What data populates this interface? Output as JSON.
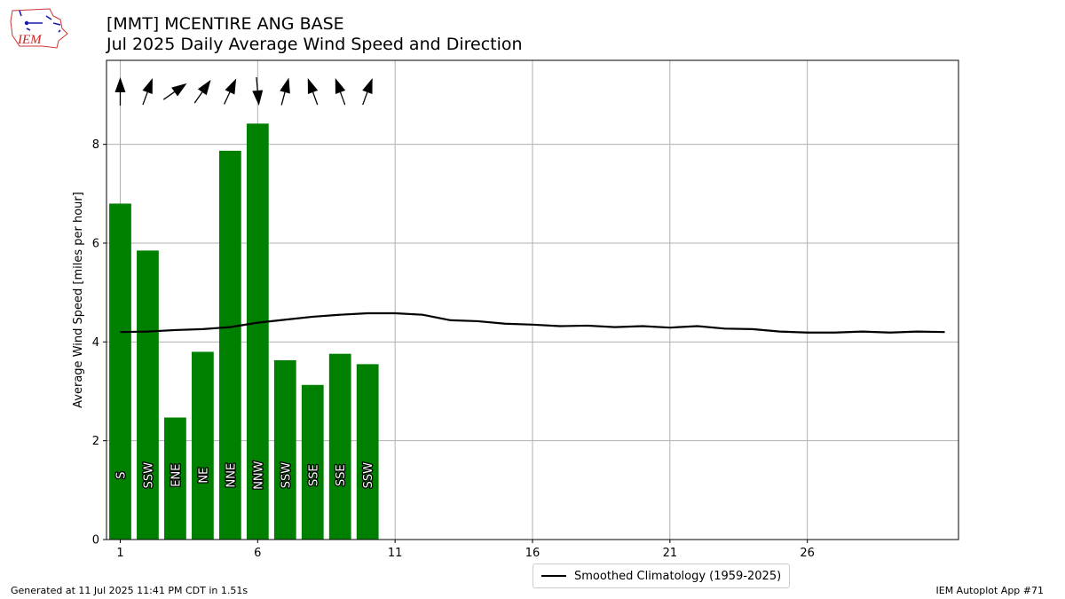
{
  "header": {
    "title_line1": "[MMT] MCENTIRE ANG BASE",
    "title_line2": "Jul 2025 Daily Average Wind Speed and Direction",
    "logo_text": "IEM"
  },
  "footer": {
    "generated": "Generated at 11 Jul 2025 11:41 PM CDT in 1.51s",
    "app": "IEM Autoplot App #71"
  },
  "legend": {
    "climatology_label": "Smoothed Climatology (1959-2025)"
  },
  "colors": {
    "bars": "#008000",
    "climatology": "#000000",
    "grid": "#b0b0b0"
  },
  "chart_data": {
    "type": "bar",
    "title": "Jul 2025 Daily Average Wind Speed and Direction",
    "xlabel": "",
    "ylabel": "Average Wind Speed [miles per hour]",
    "xlim": [
      0.5,
      31.5
    ],
    "ylim": [
      0,
      9.7
    ],
    "xticks": [
      1,
      6,
      11,
      16,
      21,
      26
    ],
    "yticks": [
      0,
      2,
      4,
      6,
      8
    ],
    "grid": true,
    "legend_position": "bottom-center",
    "bars": {
      "days": [
        1,
        2,
        3,
        4,
        5,
        6,
        7,
        8,
        9,
        10
      ],
      "values": [
        6.8,
        5.85,
        2.47,
        3.8,
        7.87,
        8.42,
        3.63,
        3.13,
        3.76,
        3.55
      ],
      "direction_labels": [
        "S",
        "SSW",
        "ENE",
        "NE",
        "NNE",
        "NNW",
        "SSW",
        "SSE",
        "SSE",
        "SSW"
      ],
      "arrow_degrees": [
        0,
        20,
        55,
        35,
        25,
        175,
        15,
        340,
        340,
        20
      ]
    },
    "series": [
      {
        "name": "Smoothed Climatology (1959-2025)",
        "x": [
          1,
          2,
          3,
          4,
          5,
          6,
          7,
          8,
          9,
          10,
          11,
          12,
          13,
          14,
          15,
          16,
          17,
          18,
          19,
          20,
          21,
          22,
          23,
          24,
          25,
          26,
          27,
          28,
          29,
          30,
          31
        ],
        "values": [
          4.2,
          4.21,
          4.24,
          4.26,
          4.3,
          4.39,
          4.45,
          4.51,
          4.55,
          4.58,
          4.58,
          4.55,
          4.44,
          4.42,
          4.37,
          4.35,
          4.32,
          4.33,
          4.3,
          4.32,
          4.29,
          4.32,
          4.27,
          4.26,
          4.21,
          4.19,
          4.19,
          4.21,
          4.19,
          4.21,
          4.2
        ]
      }
    ]
  }
}
